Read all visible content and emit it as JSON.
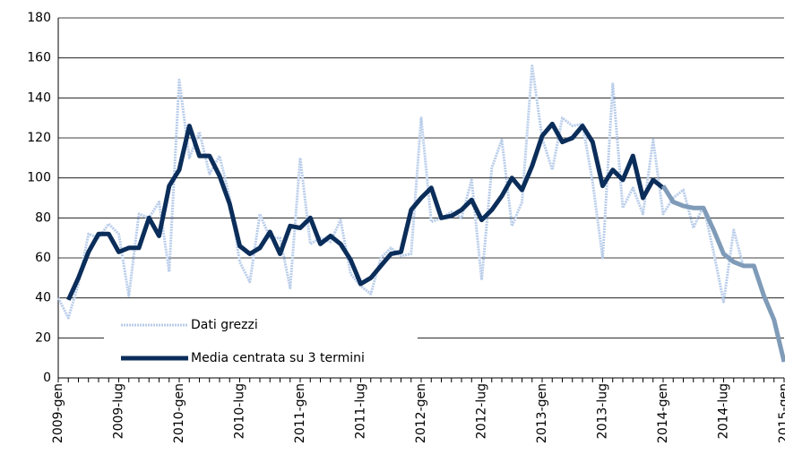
{
  "chart_data": {
    "type": "line",
    "categories": [
      "2009-gen",
      null,
      null,
      null,
      null,
      null,
      "2009-lug",
      null,
      null,
      null,
      null,
      null,
      "2010-gen",
      null,
      null,
      null,
      null,
      null,
      "2010-lug",
      null,
      null,
      null,
      null,
      null,
      "2011-gen",
      null,
      null,
      null,
      null,
      null,
      "2011-lug",
      null,
      null,
      null,
      null,
      null,
      "2012-gen",
      null,
      null,
      null,
      null,
      null,
      "2012-lug",
      null,
      null,
      null,
      null,
      null,
      "2013-gen",
      null,
      null,
      null,
      null,
      null,
      "2013-lug",
      null,
      null,
      null,
      null,
      null,
      "2014-gen",
      null,
      null,
      null,
      null,
      null,
      "2014-lug",
      null,
      null,
      null,
      null,
      null,
      "2015-gen"
    ],
    "series": [
      {
        "name": "Dati grezzi",
        "color": "#b9cdea",
        "values": [
          40,
          30,
          47,
          72,
          70,
          77,
          72,
          41,
          82,
          80,
          88,
          53,
          149,
          110,
          123,
          102,
          111,
          90,
          58,
          48,
          82,
          70,
          70,
          45,
          110,
          67,
          70,
          68,
          79,
          52,
          46,
          42,
          60,
          65,
          61,
          62,
          130,
          78,
          80,
          83,
          80,
          99,
          49,
          105,
          119,
          76,
          88,
          156,
          120,
          104,
          130,
          126,
          127,
          98,
          60,
          147,
          85,
          95,
          82,
          119,
          82,
          90,
          94,
          75,
          86,
          63,
          38,
          74,
          55,
          null,
          null,
          null,
          null
        ]
      },
      {
        "name": "Media centrata su 3 termini",
        "color": "#0b2d5a",
        "values": [
          null,
          39,
          50,
          63,
          72,
          72,
          63,
          65,
          65,
          80,
          71,
          96,
          104,
          126,
          111,
          111,
          101,
          87,
          66,
          62,
          65,
          73,
          62,
          76,
          75,
          80,
          67,
          71,
          67,
          59,
          47,
          50,
          56,
          62,
          63,
          84,
          90,
          95,
          80,
          81,
          84,
          89,
          79,
          84,
          91,
          100,
          94,
          106,
          121,
          127,
          118,
          120,
          126,
          118,
          96,
          104,
          99,
          111,
          90,
          99,
          95,
          null,
          null,
          null,
          null,
          null,
          null,
          null,
          null,
          null,
          null,
          null,
          null
        ]
      },
      {
        "color": "#7f9bb8",
        "values": [
          null,
          null,
          null,
          null,
          null,
          null,
          null,
          null,
          null,
          null,
          null,
          null,
          null,
          null,
          null,
          null,
          null,
          null,
          null,
          null,
          null,
          null,
          null,
          null,
          null,
          null,
          null,
          null,
          null,
          null,
          null,
          null,
          null,
          null,
          null,
          null,
          null,
          null,
          null,
          null,
          null,
          null,
          null,
          null,
          null,
          null,
          null,
          null,
          null,
          null,
          null,
          null,
          null,
          null,
          null,
          null,
          null,
          null,
          null,
          null,
          96,
          88,
          86,
          85,
          85,
          74,
          62,
          58,
          56,
          56,
          41,
          29,
          8
        ]
      }
    ],
    "ylim": [
      0,
      180
    ],
    "yticks": [
      0,
      20,
      40,
      60,
      80,
      100,
      120,
      140,
      160,
      180
    ],
    "grid": true
  }
}
